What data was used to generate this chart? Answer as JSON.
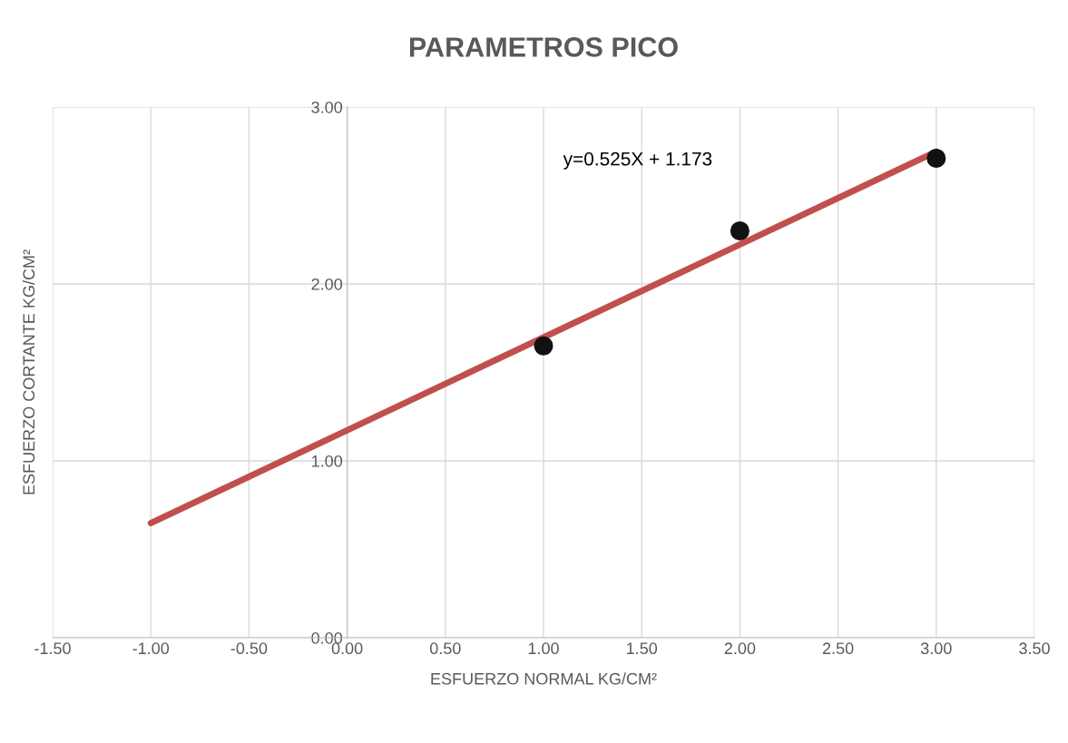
{
  "chart_data": {
    "type": "scatter",
    "title": "PARAMETROS PICO",
    "xlabel": "ESFUERZO NORMAL KG/CM²",
    "ylabel": "ESFUERZO CORTANTE KG/CM²",
    "annotations": [
      "y=0.525X + 1.173"
    ],
    "series": [
      {
        "color": "#111111",
        "x": [
          1,
          2,
          3
        ],
        "values": [
          1.65,
          2.3,
          2.71
        ],
        "marker": "circle"
      },
      {
        "type": "line",
        "color": "#c0504d",
        "x": [
          -1,
          3
        ],
        "values": [
          0.648,
          2.748
        ],
        "marker": "none",
        "line_style": "solid"
      }
    ],
    "xlim": [
      -1.5,
      3.5
    ],
    "xticks": [
      {
        "value": -1.5,
        "label": "-1.50"
      },
      {
        "value": -1,
        "label": "-1.00"
      },
      {
        "value": -0.5,
        "label": "-0.50"
      },
      {
        "value": 0,
        "label": "0.00"
      },
      {
        "value": 0.5,
        "label": "0.50"
      },
      {
        "value": 1,
        "label": "1.00"
      },
      {
        "value": 1.5,
        "label": "1.50"
      },
      {
        "value": 2,
        "label": "2.00"
      },
      {
        "value": 2.5,
        "label": "2.50"
      },
      {
        "value": 3,
        "label": "3.00"
      },
      {
        "value": 3.5,
        "label": "3.50"
      }
    ],
    "ylim": [
      0,
      3
    ],
    "yticks": [
      {
        "value": 0,
        "label": "0.00"
      },
      {
        "value": 1,
        "label": "1.00"
      },
      {
        "value": 2,
        "label": "2.00"
      },
      {
        "value": 3,
        "label": "3.00"
      }
    ],
    "grid": true,
    "legend": false
  }
}
